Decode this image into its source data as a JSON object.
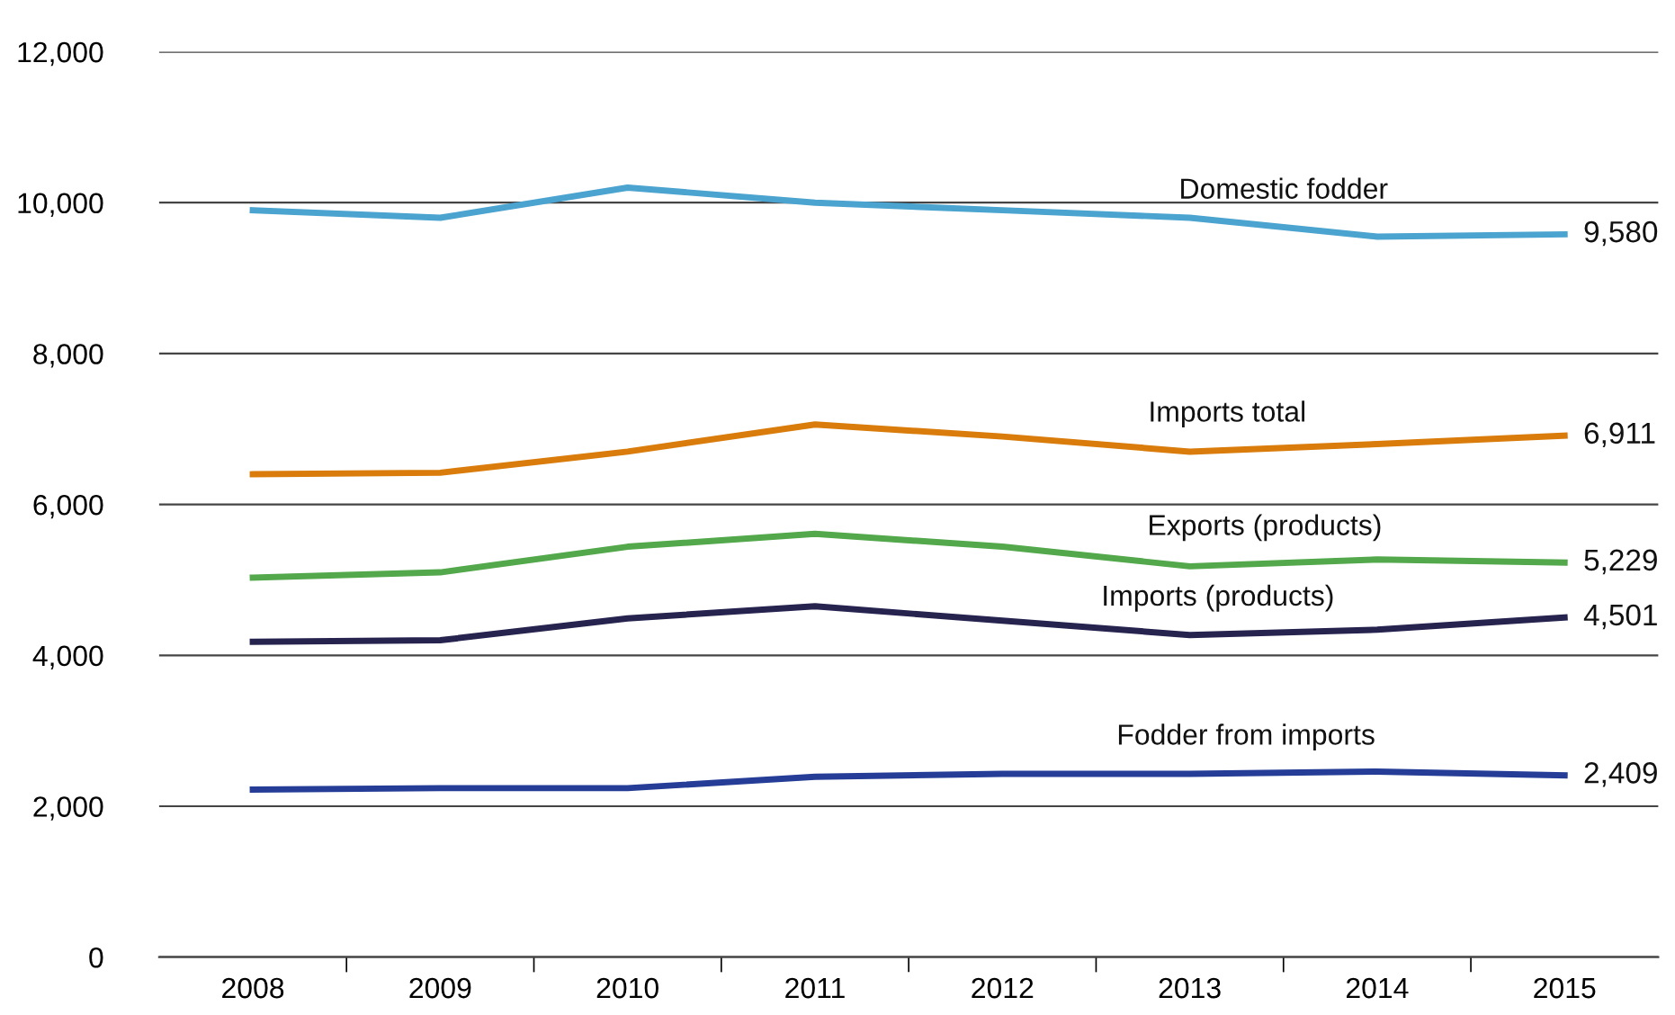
{
  "chart_data": {
    "type": "line",
    "categories": [
      "2008",
      "2009",
      "2010",
      "2011",
      "2012",
      "2013",
      "2014",
      "2015"
    ],
    "ylim": [
      0,
      12000
    ],
    "yticks": [
      {
        "value": 0,
        "label": "0"
      },
      {
        "value": 2000,
        "label": "2,000"
      },
      {
        "value": 4000,
        "label": "4,000"
      },
      {
        "value": 6000,
        "label": "6,000"
      },
      {
        "value": 8000,
        "label": "8,000"
      },
      {
        "value": 10000,
        "label": "10,000"
      },
      {
        "value": 12000,
        "label": "12,000"
      }
    ],
    "grid": "y",
    "legend": false,
    "marker": "none",
    "line_style": "solid",
    "series": [
      {
        "name": "Domestic fodder",
        "color": "#4ba3cf",
        "values": [
          9900,
          9800,
          10200,
          10000,
          9900,
          9800,
          9550,
          9580
        ],
        "value_labels": [
          null,
          null,
          null,
          null,
          null,
          null,
          null,
          "9,580"
        ]
      },
      {
        "name": "Imports total",
        "color": "#d97c0b",
        "values": [
          6400,
          6420,
          6700,
          7060,
          6900,
          6700,
          6800,
          6911
        ],
        "value_labels": [
          null,
          null,
          null,
          null,
          null,
          null,
          null,
          "6,911"
        ]
      },
      {
        "name": "Exports (products)",
        "color": "#52a84a",
        "values": [
          5030,
          5100,
          5440,
          5610,
          5440,
          5180,
          5270,
          5229
        ],
        "value_labels": [
          null,
          null,
          null,
          null,
          null,
          null,
          null,
          "5,229"
        ]
      },
      {
        "name": "Imports (products)",
        "color": "#26234f",
        "values": [
          4180,
          4200,
          4490,
          4650,
          4460,
          4270,
          4340,
          4501
        ],
        "value_labels": [
          null,
          null,
          null,
          null,
          null,
          null,
          null,
          "4,501"
        ]
      },
      {
        "name": "Fodder from imports",
        "color": "#253d97",
        "values": [
          2220,
          2240,
          2240,
          2390,
          2430,
          2430,
          2460,
          2409
        ],
        "value_labels": [
          null,
          null,
          null,
          null,
          null,
          null,
          null,
          "2,409"
        ]
      }
    ]
  }
}
